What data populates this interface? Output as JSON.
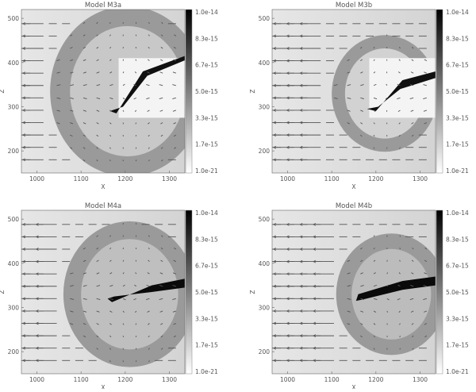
{
  "chart_data": [
    {
      "type": "heatmap",
      "title": "Model M3a",
      "xlabel": "X",
      "ylabel": "Z",
      "xlim": [
        965,
        1335
      ],
      "ylim": [
        150,
        520
      ],
      "xticks": [
        "1000",
        "1100",
        "1200",
        "1300"
      ],
      "yticks": [
        "200",
        "300",
        "400",
        "500"
      ],
      "colorbar": [
        "1.0e-14",
        "8.3e-15",
        "6.7e-15",
        "5.0e-15",
        "3.3e-15",
        "1.7e-15",
        "1.0e-21"
      ],
      "colormap": "grayscale (white low, black high)",
      "overlay": "velocity vectors"
    },
    {
      "type": "heatmap",
      "title": "Model M3b",
      "xlabel": "X",
      "ylabel": "Z",
      "xlim": [
        965,
        1335
      ],
      "ylim": [
        150,
        520
      ],
      "xticks": [
        "1000",
        "1100",
        "1200",
        "1300"
      ],
      "yticks": [
        "200",
        "300",
        "400",
        "500"
      ],
      "colorbar": [
        "1.0e-14",
        "8.3e-15",
        "6.7e-15",
        "5.0e-15",
        "3.3e-15",
        "1.7e-15",
        "1.0e-21"
      ],
      "colormap": "grayscale (white low, black high)",
      "overlay": "velocity vectors"
    },
    {
      "type": "heatmap",
      "title": "Model M4a",
      "xlabel": "X",
      "ylabel": "Z",
      "xlim": [
        965,
        1335
      ],
      "ylim": [
        150,
        520
      ],
      "xticks": [
        "1000",
        "1100",
        "1200",
        "1300"
      ],
      "yticks": [
        "200",
        "300",
        "400",
        "500"
      ],
      "colorbar": [
        "1.0e-14",
        "8.3e-15",
        "6.7e-15",
        "5.0e-15",
        "3.3e-15",
        "1.7e-15",
        "1.0e-21"
      ],
      "colormap": "grayscale (white low, black high)",
      "overlay": "velocity vectors"
    },
    {
      "type": "heatmap",
      "title": "Model M4b",
      "xlabel": "X",
      "ylabel": "Z",
      "xlim": [
        965,
        1335
      ],
      "ylim": [
        150,
        520
      ],
      "xticks": [
        "1000",
        "1100",
        "1200",
        "1300"
      ],
      "yticks": [
        "200",
        "300",
        "400",
        "500"
      ],
      "colorbar": [
        "1.0e-14",
        "8.3e-15",
        "6.7e-15",
        "5.0e-15",
        "3.3e-15",
        "1.7e-15",
        "1.0e-21"
      ],
      "colormap": "grayscale (white low, black high)",
      "overlay": "velocity vectors"
    }
  ]
}
